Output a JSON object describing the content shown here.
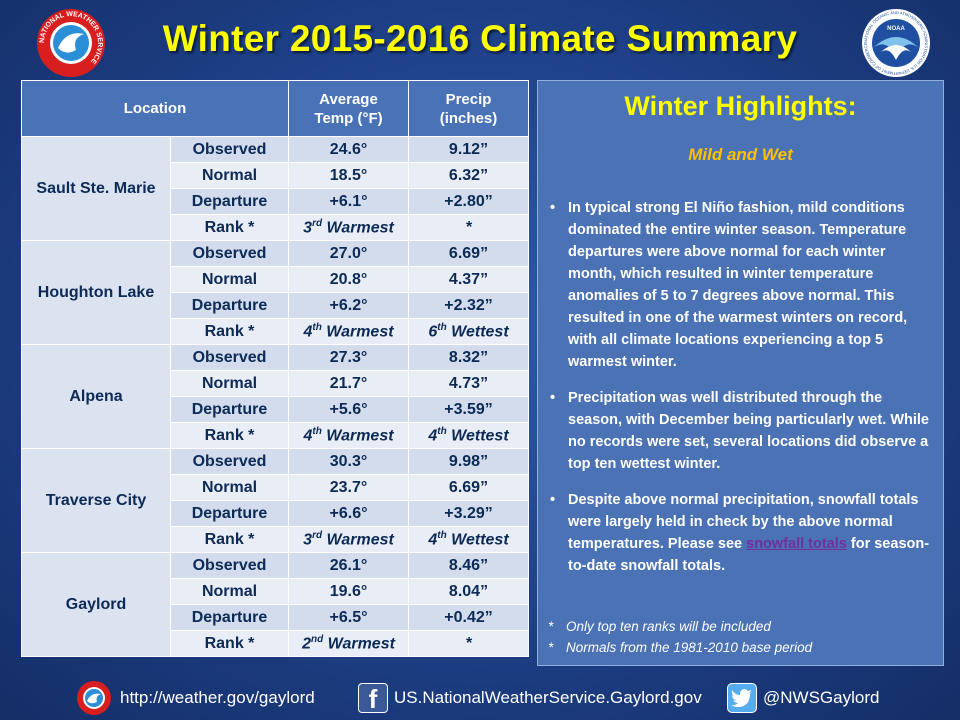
{
  "title": "Winter 2015-2016 Climate Summary",
  "logos": {
    "nws_ring_text": "NATIONAL WEATHER SERVICE",
    "noaa_text": "NOAA",
    "noaa_ring_text": "NATIONAL OCEANIC AND ATMOSPHERIC ADMINISTRATION U.S. DEPARTMENT OF COMMERCE"
  },
  "table": {
    "headers": {
      "location": "Location",
      "temp_line1": "Average",
      "temp_line2": "Temp (°F)",
      "precip_line1": "Precip",
      "precip_line2": "(inches)"
    },
    "stations": [
      {
        "name": "Sault Ste. Marie",
        "rows": [
          {
            "label": "Observed",
            "temp": "24.6°",
            "precip": "9.12”"
          },
          {
            "label": "Normal",
            "temp": "18.5°",
            "precip": "6.32”"
          },
          {
            "label": "Departure",
            "temp": "+6.1°",
            "precip": "+2.80”"
          },
          {
            "label": "Rank *",
            "temp_num": "3",
            "temp_sup": "rd",
            "temp_text": " Warmest",
            "precip_text": "*"
          }
        ]
      },
      {
        "name": "Houghton Lake",
        "rows": [
          {
            "label": "Observed",
            "temp": "27.0°",
            "precip": "6.69”"
          },
          {
            "label": "Normal",
            "temp": "20.8°",
            "precip": "4.37”"
          },
          {
            "label": "Departure",
            "temp": "+6.2°",
            "precip": "+2.32”"
          },
          {
            "label": "Rank *",
            "temp_num": "4",
            "temp_sup": "th",
            "temp_text": " Warmest",
            "precip_num": "6",
            "precip_sup": "th",
            "precip_text": " Wettest"
          }
        ]
      },
      {
        "name": "Alpena",
        "rows": [
          {
            "label": "Observed",
            "temp": "27.3°",
            "precip": "8.32”"
          },
          {
            "label": "Normal",
            "temp": "21.7°",
            "precip": "4.73”"
          },
          {
            "label": "Departure",
            "temp": "+5.6°",
            "precip": "+3.59”"
          },
          {
            "label": "Rank *",
            "temp_num": "4",
            "temp_sup": "th",
            "temp_text": " Warmest",
            "precip_num": "4",
            "precip_sup": "th",
            "precip_text": " Wettest"
          }
        ]
      },
      {
        "name": "Traverse City",
        "rows": [
          {
            "label": "Observed",
            "temp": "30.3°",
            "precip": "9.98”"
          },
          {
            "label": "Normal",
            "temp": "23.7°",
            "precip": "6.69”"
          },
          {
            "label": "Departure",
            "temp": "+6.6°",
            "precip": "+3.29”"
          },
          {
            "label": "Rank *",
            "temp_num": "3",
            "temp_sup": "rd",
            "temp_text": " Warmest",
            "precip_num": "4",
            "precip_sup": "th",
            "precip_text": " Wettest"
          }
        ]
      },
      {
        "name": "Gaylord",
        "rows": [
          {
            "label": "Observed",
            "temp": "26.1°",
            "precip": "8.46”"
          },
          {
            "label": "Normal",
            "temp": "19.6°",
            "precip": "8.04”"
          },
          {
            "label": "Departure",
            "temp": "+6.5°",
            "precip": "+0.42”"
          },
          {
            "label": "Rank *",
            "temp_num": "2",
            "temp_sup": "nd",
            "temp_text": " Warmest",
            "precip_text": "*"
          }
        ]
      }
    ]
  },
  "highlights": {
    "title": "Winter Highlights:",
    "subtitle": "Mild and Wet",
    "bullet1": "In typical strong El Niño fashion, mild conditions dominated the entire winter season.  Temperature departures were above normal for each winter month, which resulted in winter temperature anomalies of 5 to 7 degrees above normal.  This resulted in one of the warmest winters on record, with all climate locations experiencing a top 5 warmest winter.",
    "bullet2": "Precipitation was well distributed through the season, with December being particularly wet.  While no records were set, several locations did observe a top ten wettest winter.",
    "bullet3_before": "Despite above normal precipitation, snowfall totals were largely held in check by the above normal temperatures.  Please see ",
    "bullet3_link": "snowfall totals",
    "bullet3_after": " for season-to-date snowfall totals.",
    "note_marker": "*",
    "note1": "Only top ten ranks will be included",
    "note2": "Normals from the 1981-2010 base period"
  },
  "footer": {
    "website": "http://weather.gov/gaylord",
    "facebook_glyph": "f",
    "facebook": "US.NationalWeatherService.Gaylord.gov",
    "twitter": "@NWSGaylord"
  },
  "colors": {
    "title_yellow": "#ffff00",
    "subtitle_orange": "#ffc000",
    "rank_red": "#e00000",
    "link_purple": "#7030a0"
  }
}
